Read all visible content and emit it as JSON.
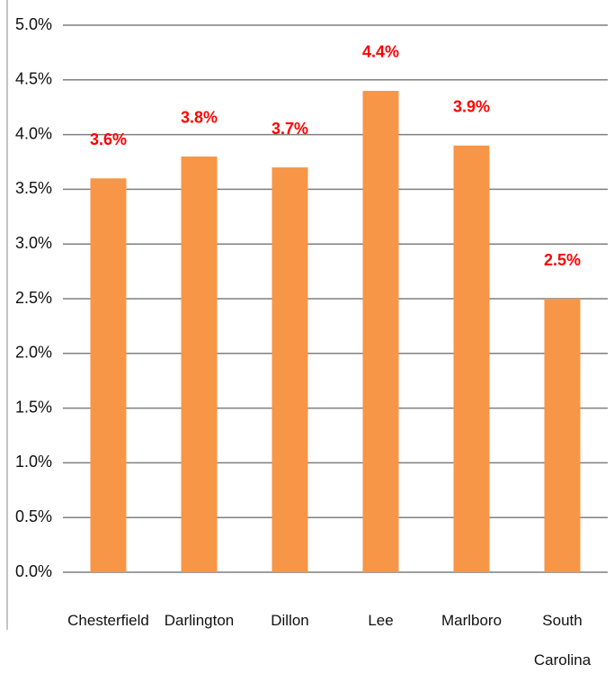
{
  "chart_data": {
    "type": "bar",
    "categories": [
      "Chesterfield",
      "Darlington",
      "Dillon",
      "Lee",
      "Marlboro",
      "South Carolina"
    ],
    "values": [
      3.6,
      3.8,
      3.7,
      4.4,
      3.9,
      2.5
    ],
    "value_labels": [
      "3.6%",
      "3.8%",
      "3.7%",
      "4.4%",
      "3.9%",
      "2.5%"
    ],
    "color": "#f79646",
    "value_label_color": "#ff0000",
    "ylim": [
      0,
      5
    ],
    "yticks": [
      {
        "value": 0,
        "label": "0.0%"
      },
      {
        "value": 0.5,
        "label": "0.5%"
      },
      {
        "value": 1,
        "label": "1.0%"
      },
      {
        "value": 1.5,
        "label": "1.5%"
      },
      {
        "value": 2,
        "label": "2.0%"
      },
      {
        "value": 2.5,
        "label": "2.5%"
      },
      {
        "value": 3,
        "label": "3.0%"
      },
      {
        "value": 3.5,
        "label": "3.5%"
      },
      {
        "value": 4,
        "label": "4.0%"
      },
      {
        "value": 4.5,
        "label": "4.5%"
      },
      {
        "value": 5,
        "label": "5.0%"
      }
    ],
    "grid": true
  }
}
